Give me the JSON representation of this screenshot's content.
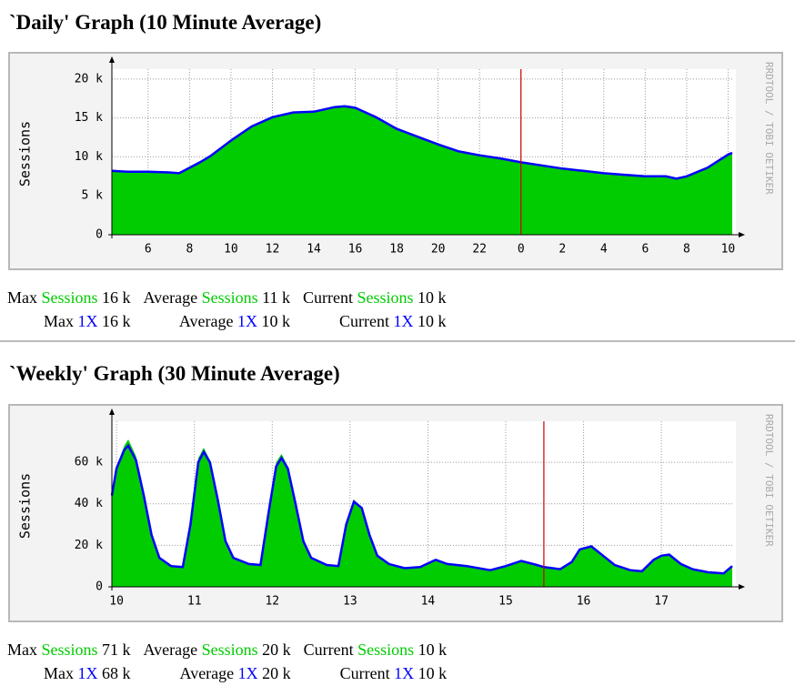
{
  "chart_data": [
    {
      "type": "area",
      "title": "`Daily' Graph (10 Minute Average)",
      "y_label": "Sessions",
      "watermark": "RRDTOOL / TOBI OETIKER",
      "x": [
        4.25,
        5,
        6,
        7,
        7.5,
        8,
        8.5,
        9,
        10,
        11,
        12,
        13,
        14,
        15,
        15.5,
        16,
        17,
        18,
        19,
        20,
        21,
        22,
        23,
        24,
        25,
        26,
        27,
        28,
        29,
        30,
        31,
        31.5,
        32,
        33,
        34,
        34.2
      ],
      "series": [
        {
          "name": "Sessions",
          "color": "#00cc00",
          "style": "area",
          "stats": [
            "16 k",
            "11 k",
            "10 k"
          ],
          "values": [
            8200,
            8100,
            8100,
            8000,
            7900,
            8600,
            9200,
            10000,
            12000,
            13800,
            15000,
            15600,
            15700,
            16300,
            16400,
            16200,
            15000,
            13500,
            12500,
            11500,
            10600,
            10100,
            9700,
            9200,
            8800,
            8400,
            8100,
            7800,
            7600,
            7400,
            7400,
            7100,
            7400,
            8500,
            10200,
            10400
          ]
        },
        {
          "name": "1X",
          "color": "#0000ff",
          "style": "line",
          "stats": [
            "16 k",
            "10 k",
            "10 k"
          ],
          "values": [
            8200,
            8100,
            8100,
            8000,
            7900,
            8600,
            9300,
            10100,
            12100,
            13900,
            15100,
            15700,
            15800,
            16400,
            16500,
            16300,
            15100,
            13600,
            12600,
            11600,
            10700,
            10200,
            9800,
            9300,
            8900,
            8500,
            8200,
            7900,
            7700,
            7500,
            7500,
            7200,
            7500,
            8600,
            10300,
            10500
          ]
        }
      ],
      "stat_labels": [
        "Max",
        "Average",
        "Current"
      ],
      "xlim": [
        4.25,
        34.2
      ],
      "xticks": [
        6,
        8,
        10,
        12,
        14,
        16,
        18,
        20,
        22,
        {
          "value": 24,
          "label": "0"
        },
        {
          "value": 26,
          "label": "2"
        },
        {
          "value": 28,
          "label": "4"
        },
        {
          "value": 30,
          "label": "6"
        },
        {
          "value": 32,
          "label": "8"
        },
        {
          "value": 34,
          "label": "10"
        }
      ],
      "ylim": [
        0,
        20800
      ],
      "yticks": [
        0,
        {
          "value": 5000,
          "label": "5 k"
        },
        {
          "value": 10000,
          "label": "10 k"
        },
        {
          "value": 15000,
          "label": "15 k"
        },
        {
          "value": 20000,
          "label": "20 k"
        }
      ],
      "vrule": 24,
      "vrule_color": "#cc0000",
      "grid": true
    },
    {
      "type": "area",
      "title": "`Weekly' Graph (30 Minute Average)",
      "y_label": "Sessions",
      "watermark": "RRDTOOL / TOBI OETIKER",
      "x": [
        9.94,
        10.0,
        10.1,
        10.15,
        10.25,
        10.35,
        10.45,
        10.55,
        10.7,
        10.85,
        10.95,
        11.05,
        11.12,
        11.2,
        11.3,
        11.4,
        11.5,
        11.7,
        11.85,
        11.95,
        12.05,
        12.12,
        12.2,
        12.3,
        12.4,
        12.5,
        12.7,
        12.85,
        12.95,
        13.05,
        13.15,
        13.25,
        13.35,
        13.5,
        13.7,
        13.9,
        14.1,
        14.25,
        14.5,
        14.8,
        15.0,
        15.2,
        15.4,
        15.49,
        15.7,
        15.85,
        15.95,
        16.1,
        16.25,
        16.4,
        16.6,
        16.75,
        16.9,
        17.0,
        17.1,
        17.25,
        17.4,
        17.6,
        17.8,
        17.91
      ],
      "series": [
        {
          "name": "Sessions",
          "color": "#00cc00",
          "style": "area",
          "stats": [
            "71 k",
            "20 k",
            "10 k"
          ],
          "values": [
            45000,
            58000,
            68000,
            71000,
            63000,
            45000,
            25000,
            14000,
            10000,
            9500,
            30000,
            62000,
            67000,
            61000,
            42000,
            22000,
            14000,
            11000,
            10500,
            35000,
            60000,
            64000,
            58000,
            40000,
            22000,
            14000,
            10500,
            10000,
            30000,
            42000,
            38000,
            25000,
            15000,
            11000,
            9000,
            9500,
            13500,
            11000,
            10000,
            8000,
            10000,
            12500,
            10500,
            9500,
            8500,
            12000,
            18000,
            20000,
            15000,
            10500,
            8000,
            7500,
            13000,
            15500,
            16000,
            11000,
            8500,
            7000,
            6500,
            10000
          ]
        },
        {
          "name": "1X",
          "color": "#0000ff",
          "style": "line",
          "stats": [
            "68 k",
            "20 k",
            "10 k"
          ],
          "values": [
            44000,
            57000,
            66000,
            68000,
            61000,
            44000,
            25000,
            14000,
            10000,
            9500,
            30000,
            60000,
            65000,
            60000,
            42000,
            22000,
            14000,
            11000,
            10500,
            35000,
            58000,
            62000,
            57000,
            40000,
            22000,
            14000,
            10500,
            10000,
            30000,
            41000,
            38000,
            25000,
            15000,
            11000,
            9000,
            9500,
            13000,
            11000,
            10000,
            8000,
            10000,
            12500,
            10500,
            9500,
            8500,
            12000,
            18000,
            19500,
            15000,
            10500,
            8000,
            7500,
            13000,
            15000,
            15500,
            11000,
            8500,
            7000,
            6500,
            10000
          ]
        }
      ],
      "stat_labels": [
        "Max",
        "Average",
        "Current"
      ],
      "xlim": [
        9.94,
        17.91
      ],
      "xticks": [
        10,
        11,
        12,
        13,
        14,
        15,
        16,
        17
      ],
      "ylim": [
        0,
        78000
      ],
      "yticks": [
        0,
        {
          "value": 20000,
          "label": "20 k"
        },
        {
          "value": 40000,
          "label": "40 k"
        },
        {
          "value": 60000,
          "label": "60 k"
        }
      ],
      "vrule": 15.49,
      "vrule_color": "#cc0000",
      "grid": true
    }
  ]
}
